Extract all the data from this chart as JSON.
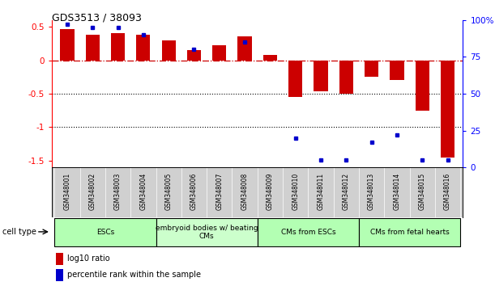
{
  "title": "GDS3513 / 38093",
  "samples": [
    "GSM348001",
    "GSM348002",
    "GSM348003",
    "GSM348004",
    "GSM348005",
    "GSM348006",
    "GSM348007",
    "GSM348008",
    "GSM348009",
    "GSM348010",
    "GSM348011",
    "GSM348012",
    "GSM348013",
    "GSM348014",
    "GSM348015",
    "GSM348016"
  ],
  "log10_ratio": [
    0.46,
    0.38,
    0.4,
    0.38,
    0.3,
    0.15,
    0.22,
    0.35,
    0.08,
    -0.55,
    -0.47,
    -0.5,
    -0.25,
    -0.3,
    -0.75,
    -1.45
  ],
  "percentile_ranks": [
    97,
    95,
    95,
    90,
    null,
    80,
    null,
    85,
    null,
    20,
    5,
    5,
    17,
    22,
    5,
    5
  ],
  "groups": [
    {
      "label": "ESCs",
      "start": 0,
      "end": 3,
      "color": "#b3ffb3"
    },
    {
      "label": "embryoid bodies w/ beating\nCMs",
      "start": 4,
      "end": 7,
      "color": "#ccffcc"
    },
    {
      "label": "CMs from ESCs",
      "start": 8,
      "end": 11,
      "color": "#b3ffb3"
    },
    {
      "label": "CMs from fetal hearts",
      "start": 12,
      "end": 15,
      "color": "#b3ffb3"
    }
  ],
  "bar_color": "#CC0000",
  "dot_color": "#0000CC",
  "zero_line_color": "#CC0000",
  "ylim_left": [
    -1.6,
    0.6
  ],
  "ylim_right": [
    0,
    100
  ],
  "yticks_left": [
    0.5,
    0,
    -0.5,
    -1.0,
    -1.5
  ],
  "ytick_labels_left": [
    "0.5",
    "0",
    "-0.5",
    "-1",
    "-1.5"
  ],
  "yticks_right": [
    100,
    75,
    50,
    25,
    0
  ],
  "ytick_labels_right": [
    "100%",
    "75",
    "50",
    "25",
    "0"
  ],
  "dotted_lines": [
    -0.5,
    -1.0
  ],
  "background_color": "#ffffff",
  "bar_width": 0.55
}
